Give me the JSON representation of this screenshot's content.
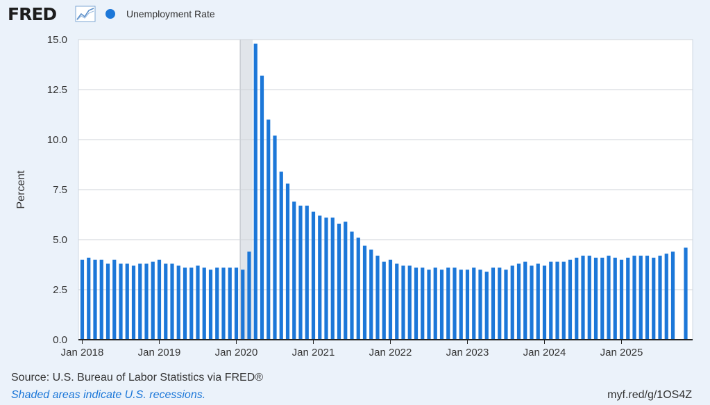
{
  "header": {
    "logo_text": "FRED",
    "legend_label": "Unemployment Rate",
    "series_color": "#1c77d8"
  },
  "footer": {
    "source": "Source: U.S. Bureau of Labor Statistics via FRED®",
    "note": "Shaded areas indicate U.S. recessions.",
    "link": "myf.red/g/1OS4Z"
  },
  "chart_data": {
    "type": "bar",
    "title": "",
    "xlabel": "",
    "ylabel": "Percent",
    "ylim": [
      0,
      15
    ],
    "yticks": [
      "0.0",
      "2.5",
      "5.0",
      "7.5",
      "10.0",
      "12.5",
      "15.0"
    ],
    "xtick_labels": [
      "Jan 2018",
      "Jan 2019",
      "Jan 2020",
      "Jan 2021",
      "Jan 2022",
      "Jan 2023",
      "Jan 2024",
      "Jan 2025"
    ],
    "start": "2018-01",
    "grid": true,
    "recession": {
      "start": "2020-02",
      "end": "2020-04"
    },
    "series": [
      {
        "name": "Unemployment Rate",
        "values": [
          4.0,
          4.1,
          4.0,
          4.0,
          3.8,
          4.0,
          3.8,
          3.8,
          3.7,
          3.8,
          3.8,
          3.9,
          4.0,
          3.8,
          3.8,
          3.7,
          3.6,
          3.6,
          3.7,
          3.6,
          3.5,
          3.6,
          3.6,
          3.6,
          3.6,
          3.5,
          4.4,
          14.8,
          13.2,
          11.0,
          10.2,
          8.4,
          7.8,
          6.9,
          6.7,
          6.7,
          6.4,
          6.2,
          6.1,
          6.1,
          5.8,
          5.9,
          5.4,
          5.1,
          4.7,
          4.5,
          4.2,
          3.9,
          4.0,
          3.8,
          3.7,
          3.7,
          3.6,
          3.6,
          3.5,
          3.6,
          3.5,
          3.6,
          3.6,
          3.5,
          3.5,
          3.6,
          3.5,
          3.4,
          3.6,
          3.6,
          3.5,
          3.7,
          3.8,
          3.9,
          3.7,
          3.8,
          3.7,
          3.9,
          3.9,
          3.9,
          4.0,
          4.1,
          4.2,
          4.2,
          4.1,
          4.1,
          4.2,
          4.1,
          4.0,
          4.1,
          4.2,
          4.2,
          4.2,
          4.1,
          4.2,
          4.3,
          4.4,
          null,
          4.6
        ]
      }
    ]
  }
}
